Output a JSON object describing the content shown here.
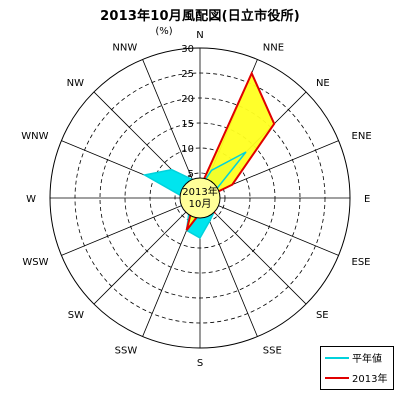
{
  "chart_data": {
    "type": "radar",
    "title": "2013年10月風配図(日立市役所)",
    "unit_label": "(%)",
    "center_label": [
      "2013年",
      "10月"
    ],
    "directions": [
      "N",
      "NNE",
      "NE",
      "ENE",
      "E",
      "ESE",
      "SE",
      "SSE",
      "S",
      "SSW",
      "SW",
      "WSW",
      "W",
      "WNW",
      "NW",
      "NNW"
    ],
    "rlim": [
      0,
      30
    ],
    "radial_ticks": [
      0,
      5,
      10,
      15,
      20,
      25,
      30
    ],
    "grid": true,
    "legend_position": "bottom-right",
    "series": [
      {
        "name": "平年値",
        "color": "#00d2dc",
        "fill": "#00e5ee",
        "values": [
          2,
          6,
          13,
          3,
          2,
          3,
          4,
          5,
          8,
          7,
          3,
          4,
          3,
          12,
          8,
          4
        ]
      },
      {
        "name": "2013年",
        "color": "#e00000",
        "fill": "#ffff20",
        "values": [
          2,
          27,
          21,
          7,
          1,
          2,
          4,
          2,
          3,
          7,
          2,
          2,
          1,
          2,
          1,
          2
        ]
      }
    ]
  }
}
